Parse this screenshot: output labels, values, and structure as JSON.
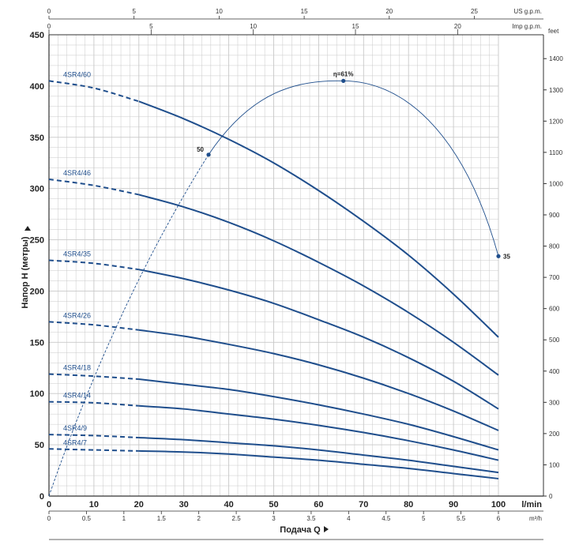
{
  "chart_data": {
    "type": "line",
    "x_axis": {
      "label": "l/min",
      "range": [
        0,
        100
      ],
      "ticks": [
        0,
        10,
        20,
        30,
        40,
        50,
        60,
        70,
        80,
        90,
        100
      ]
    },
    "x2_axis": {
      "label": "m³/h",
      "range": [
        0,
        6
      ],
      "ticks": [
        "0",
        "0.5",
        "1",
        "1.5",
        "2",
        "2.5",
        "3",
        "3.5",
        "4",
        "4.5",
        "5",
        "5.5",
        "6"
      ]
    },
    "x_top_us": {
      "label": "US g.p.m.",
      "range": [
        0,
        26.4
      ],
      "ticks": [
        0,
        5,
        10,
        15,
        20,
        25
      ]
    },
    "x_top_imp": {
      "label": "Imp g.p.m.",
      "range": [
        0,
        22
      ],
      "ticks": [
        0,
        5,
        10,
        15,
        20
      ]
    },
    "y_axis": {
      "label": "Напор H (метры)",
      "range": [
        0,
        450
      ],
      "ticks": [
        0,
        50,
        100,
        150,
        200,
        250,
        300,
        350,
        400,
        450
      ]
    },
    "y_right_axis": {
      "label": "feet",
      "range": [
        0,
        1476
      ],
      "ticks": [
        0,
        100,
        200,
        300,
        400,
        500,
        600,
        700,
        800,
        900,
        1000,
        1100,
        1200,
        1300,
        1400
      ]
    },
    "xlabel": "Подача Q",
    "grid": true,
    "series": [
      {
        "name": "4SR4/60",
        "x": [
          0,
          10,
          20,
          30,
          40,
          50,
          60,
          70,
          80,
          90,
          100
        ],
        "y": [
          405,
          398,
          385,
          368,
          348,
          325,
          298,
          268,
          235,
          197,
          155
        ]
      },
      {
        "name": "4SR4/46",
        "x": [
          0,
          10,
          20,
          30,
          40,
          50,
          60,
          70,
          80,
          90,
          100
        ],
        "y": [
          309,
          303,
          294,
          282,
          267,
          249,
          228,
          205,
          179,
          150,
          118
        ]
      },
      {
        "name": "4SR4/35",
        "x": [
          0,
          10,
          20,
          30,
          40,
          50,
          60,
          70,
          80,
          90,
          100
        ],
        "y": [
          230,
          227,
          221,
          212,
          201,
          188,
          172,
          155,
          135,
          112,
          85
        ]
      },
      {
        "name": "4SR4/26",
        "x": [
          0,
          10,
          20,
          30,
          40,
          50,
          60,
          70,
          80,
          90,
          100
        ],
        "y": [
          170,
          167,
          162,
          156,
          148,
          139,
          128,
          115,
          100,
          83,
          64
        ]
      },
      {
        "name": "4SR4/18",
        "x": [
          0,
          10,
          20,
          30,
          40,
          50,
          60,
          70,
          80,
          90,
          100
        ],
        "y": [
          119,
          117,
          114,
          109,
          104,
          97,
          89,
          80,
          70,
          58,
          45
        ]
      },
      {
        "name": "4SR4/14",
        "x": [
          0,
          10,
          20,
          30,
          40,
          50,
          60,
          70,
          80,
          90,
          100
        ],
        "y": [
          92,
          91,
          88,
          85,
          80,
          75,
          69,
          62,
          54,
          45,
          35
        ]
      },
      {
        "name": "4SR4/9",
        "x": [
          0,
          10,
          20,
          30,
          40,
          50,
          60,
          70,
          80,
          90,
          100
        ],
        "y": [
          60,
          59,
          57,
          55,
          52,
          49,
          45,
          40,
          35,
          29,
          23
        ]
      },
      {
        "name": "4SR4/7",
        "x": [
          0,
          10,
          20,
          30,
          40,
          50,
          60,
          70,
          80,
          90,
          100
        ],
        "y": [
          46,
          45,
          44,
          43,
          41,
          38,
          35,
          31,
          27,
          22,
          17
        ]
      }
    ],
    "efficiency_curve": {
      "points": [
        {
          "x": 35.5,
          "y": 333,
          "label": "50"
        },
        {
          "x": 65.5,
          "y": 405,
          "label": "η=61%"
        },
        {
          "x": 100,
          "y": 234,
          "label": "35"
        }
      ]
    },
    "dashed_until_x": 20
  },
  "colors": {
    "curve": "#1f4e8c",
    "grid": "#c8c8c8",
    "axis": "#333333"
  }
}
